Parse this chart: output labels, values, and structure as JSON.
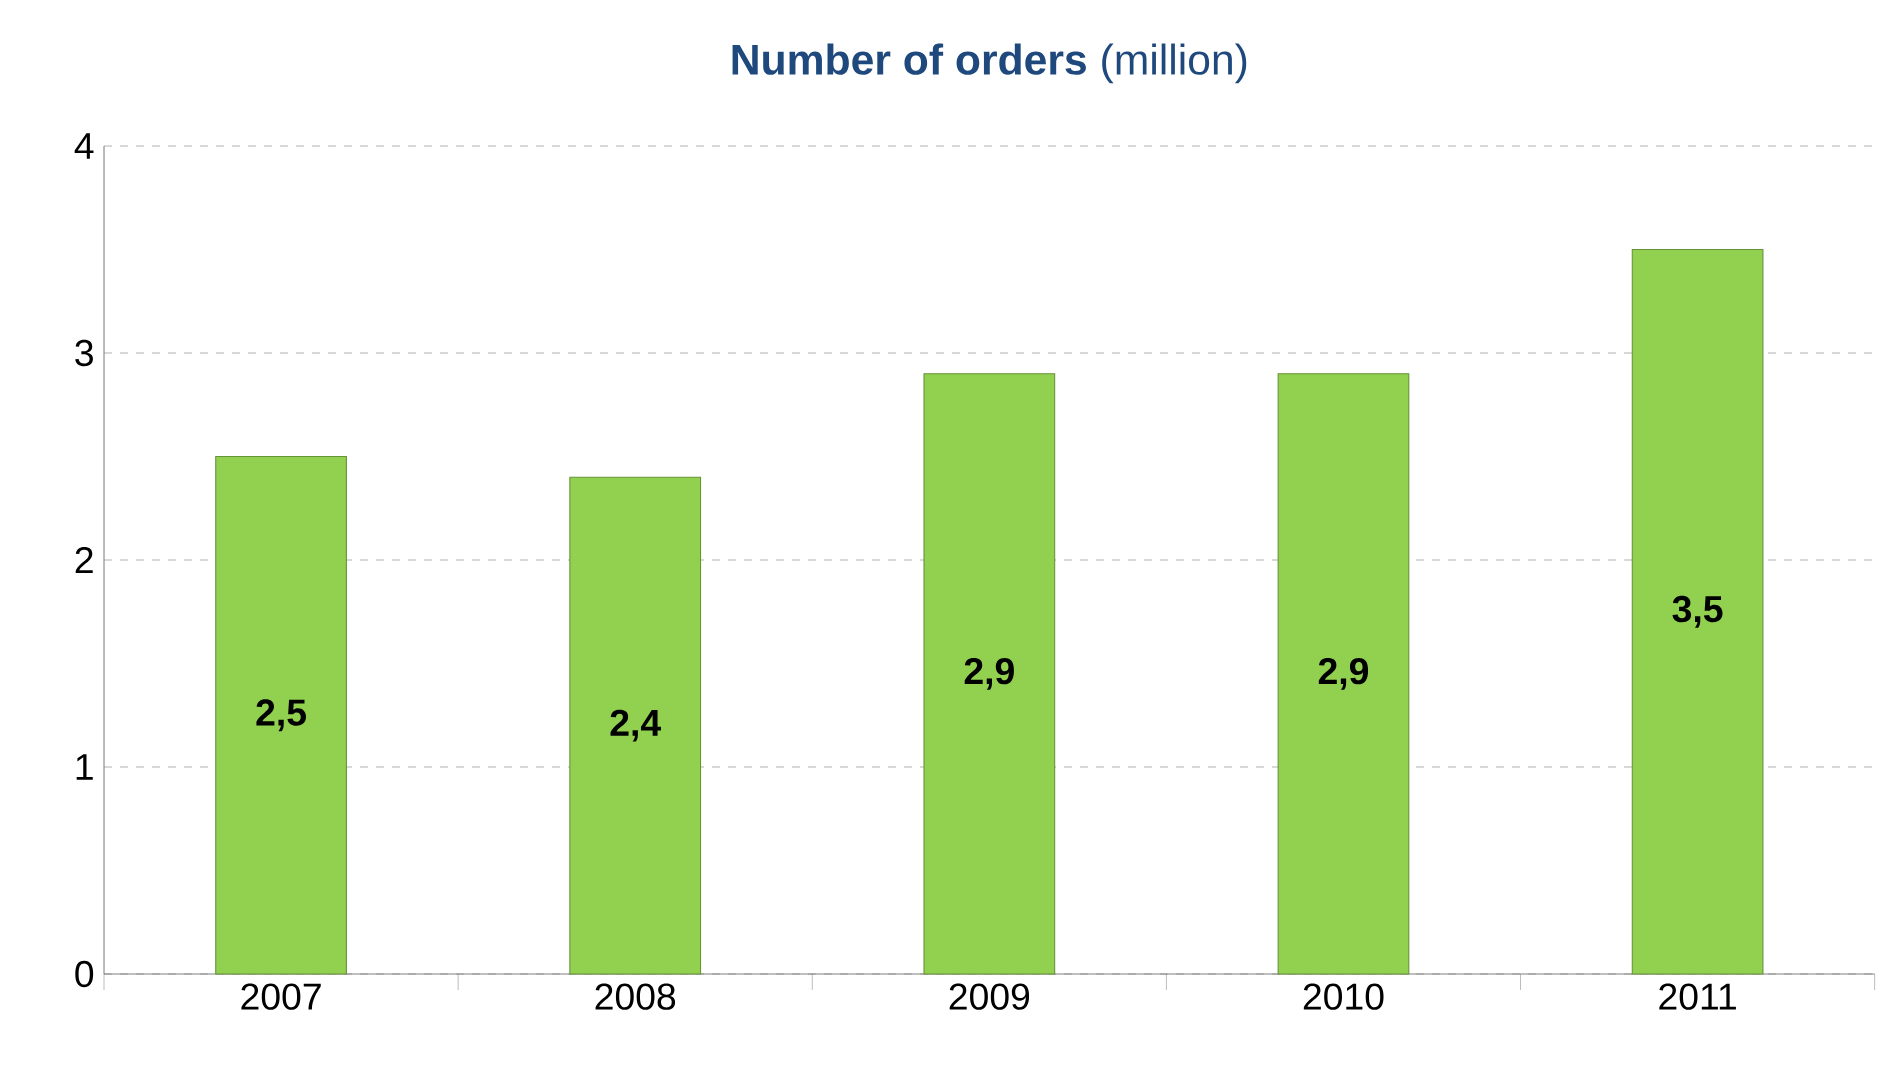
{
  "chart_data": {
    "type": "bar",
    "title": "**Number of orders** (million)",
    "categories": [
      "2007",
      "2008",
      "2009",
      "2010",
      "2011"
    ],
    "values": [
      2.5,
      2.4,
      2.9,
      2.9,
      3.5
    ],
    "value_labels": [
      "2,5",
      "2,4",
      "2,9",
      "2,9",
      "3,5"
    ],
    "color": "#92d050",
    "ylim": [
      0,
      4
    ],
    "yticks": [
      0,
      1,
      2,
      3,
      4
    ],
    "grid": "y",
    "line_style": "dashed"
  }
}
